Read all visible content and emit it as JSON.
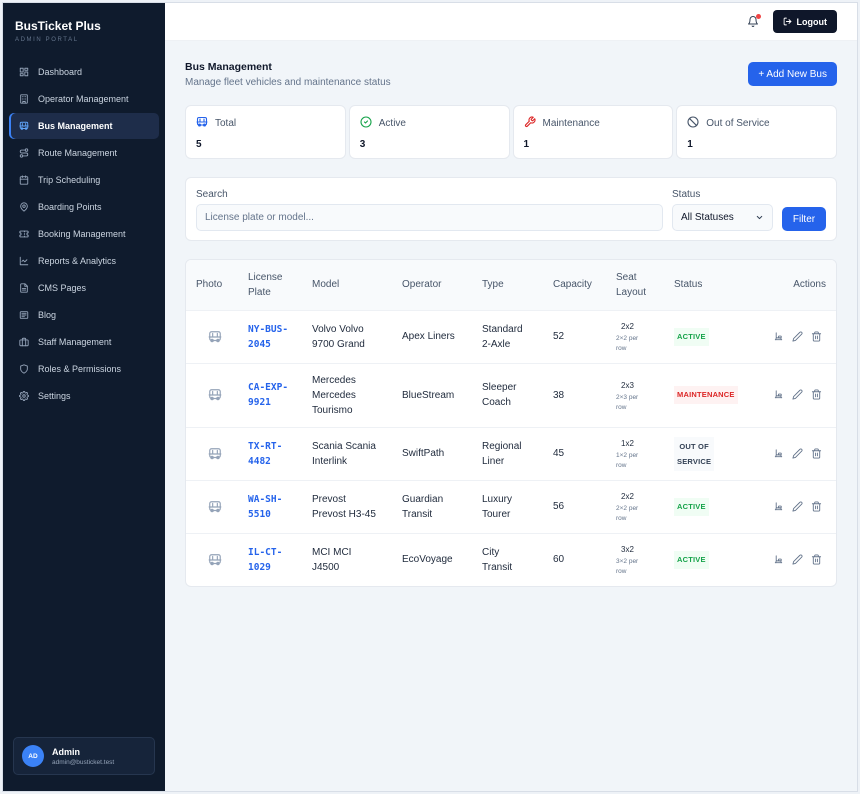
{
  "brand": {
    "title": "BusTicket Plus",
    "subtitle": "ADMIN PORTAL"
  },
  "sidebar": {
    "items": [
      {
        "label": "Dashboard",
        "icon": "grid-icon"
      },
      {
        "label": "Operator Management",
        "icon": "building-icon"
      },
      {
        "label": "Bus Management",
        "icon": "bus-icon",
        "active": true
      },
      {
        "label": "Route Management",
        "icon": "route-icon"
      },
      {
        "label": "Trip Scheduling",
        "icon": "calendar-icon"
      },
      {
        "label": "Boarding Points",
        "icon": "map-pin-icon"
      },
      {
        "label": "Booking Management",
        "icon": "ticket-icon"
      },
      {
        "label": "Reports & Analytics",
        "icon": "chart-icon"
      },
      {
        "label": "CMS Pages",
        "icon": "file-icon"
      },
      {
        "label": "Blog",
        "icon": "newspaper-icon"
      },
      {
        "label": "Staff Management",
        "icon": "briefcase-icon"
      },
      {
        "label": "Roles & Permissions",
        "icon": "shield-icon"
      },
      {
        "label": "Settings",
        "icon": "gear-icon"
      }
    ]
  },
  "user": {
    "initials": "AD",
    "name": "Admin",
    "email": "admin@busticket.test"
  },
  "topbar": {
    "logout_label": "Logout"
  },
  "page": {
    "title": "Bus Management",
    "subtitle": "Manage fleet vehicles and maintenance status",
    "add_label": "+  Add New Bus"
  },
  "stats": [
    {
      "label": "Total",
      "value": "5",
      "icon": "bus-icon",
      "color": "#2563eb"
    },
    {
      "label": "Active",
      "value": "3",
      "icon": "check-circle-icon",
      "color": "#16a34a"
    },
    {
      "label": "Maintenance",
      "value": "1",
      "icon": "wrench-icon",
      "color": "#dc2626"
    },
    {
      "label": "Out of Service",
      "value": "1",
      "icon": "ban-icon",
      "color": "#475569"
    }
  ],
  "filters": {
    "search_label": "Search",
    "search_placeholder": "License plate or model...",
    "status_label": "Status",
    "status_value": "All Statuses",
    "filter_label": "Filter"
  },
  "table": {
    "headers": {
      "photo": "Photo",
      "plate_1": "License",
      "plate_2": "Plate",
      "model": "Model",
      "operator": "Operator",
      "type": "Type",
      "capacity": "Capacity",
      "layout_1": "Seat",
      "layout_2": "Layout",
      "status": "Status",
      "actions": "Actions"
    },
    "rows": [
      {
        "plate_1": "NY-BUS-",
        "plate_2": "2045",
        "model": [
          "Volvo Volvo",
          "9700 Grand"
        ],
        "operator": [
          "Apex Liners"
        ],
        "type": [
          "Standard",
          "2-Axle"
        ],
        "capacity": "52",
        "layout": "2x2",
        "layout_sub": [
          "2×2 per",
          "row"
        ],
        "status": [
          "ACTIVE"
        ],
        "status_kind": "active"
      },
      {
        "plate_1": "CA-EXP-",
        "plate_2": "9921",
        "model": [
          "Mercedes",
          "Mercedes",
          "Tourismo"
        ],
        "operator": [
          "BlueStream"
        ],
        "type": [
          "Sleeper",
          "Coach"
        ],
        "capacity": "38",
        "layout": "2x3",
        "layout_sub": [
          "2×3 per",
          "row"
        ],
        "status": [
          "MAINTENANCE"
        ],
        "status_kind": "maintenance"
      },
      {
        "plate_1": "TX-RT-",
        "plate_2": "4482",
        "model": [
          "Scania Scania",
          "Interlink"
        ],
        "operator": [
          "SwiftPath"
        ],
        "type": [
          "Regional",
          "Liner"
        ],
        "capacity": "45",
        "layout": "1x2",
        "layout_sub": [
          "1×2 per",
          "row"
        ],
        "status": [
          "OUT OF",
          "SERVICE"
        ],
        "status_kind": "out"
      },
      {
        "plate_1": "WA-SH-",
        "plate_2": "5510",
        "model": [
          "Prevost",
          "Prevost H3-45"
        ],
        "operator": [
          "Guardian",
          "Transit"
        ],
        "type": [
          "Luxury",
          "Tourer"
        ],
        "capacity": "56",
        "layout": "2x2",
        "layout_sub": [
          "2×2 per",
          "row"
        ],
        "status": [
          "ACTIVE"
        ],
        "status_kind": "active"
      },
      {
        "plate_1": "IL-CT-",
        "plate_2": "1029",
        "model": [
          "MCI MCI",
          "J4500"
        ],
        "operator": [
          "EcoVoyage"
        ],
        "type": [
          "City",
          "Transit"
        ],
        "capacity": "60",
        "layout": "3x2",
        "layout_sub": [
          "3×2 per",
          "row"
        ],
        "status": [
          "ACTIVE"
        ],
        "status_kind": "active"
      }
    ]
  }
}
